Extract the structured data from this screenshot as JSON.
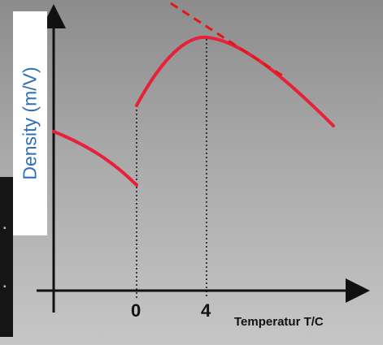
{
  "labels": {
    "y_axis": "Density (m/V)",
    "x_axis": "Temperatur T/C",
    "tick_zero": "0",
    "tick_four": "4"
  },
  "colors": {
    "curve": "#e8203a",
    "tangent": "#e01818",
    "axis": "#111111",
    "ylabel_text": "#2f6fb8",
    "ylabel_bg": "#ffffff"
  },
  "elements": {
    "curve_style": "solid",
    "tangent_style": "dashed",
    "guides_style": "dotted"
  }
}
